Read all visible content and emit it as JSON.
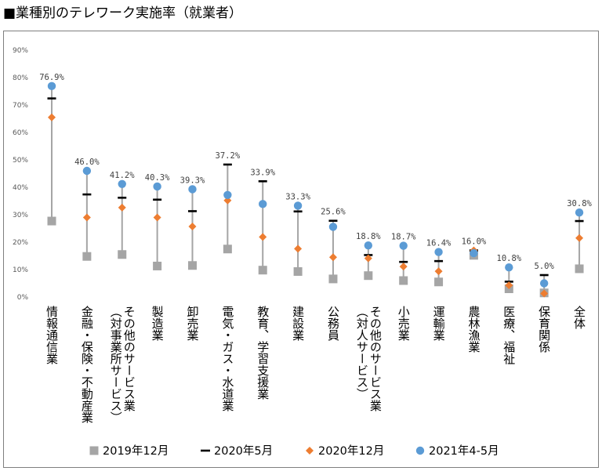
{
  "title": "■業種別のテレワーク実施率（就業者）",
  "chart_data": {
    "type": "scatter",
    "title": "業種別のテレワーク実施率（就業者）",
    "ylim": [
      0,
      90
    ],
    "y_ticks": [
      "0%",
      "10%",
      "20%",
      "30%",
      "40%",
      "50%",
      "60%",
      "70%",
      "80%",
      "90%"
    ],
    "grid": false,
    "legend_position": "bottom",
    "categories": [
      [
        "情報通信業"
      ],
      [
        "金融・保険・不動産業"
      ],
      [
        "その他のサービス業",
        "（対事業所サービス）"
      ],
      [
        "製造業"
      ],
      [
        "卸売業"
      ],
      [
        "電気・ガス・水道業"
      ],
      [
        "教育、学習支援業"
      ],
      [
        "建設業"
      ],
      [
        "公務員"
      ],
      [
        "その他のサービス業",
        "（対人サービス）"
      ],
      [
        "小売業"
      ],
      [
        "運輸業"
      ],
      [
        "農林漁業"
      ],
      [
        "医療、福祉"
      ],
      [
        "保育関係"
      ],
      [
        "全体"
      ]
    ],
    "series": [
      {
        "name": "2019年12月",
        "marker": "square",
        "color": "#a5a5a5",
        "values": [
          27.7,
          14.8,
          15.5,
          11.3,
          11.5,
          17.5,
          9.8,
          9.3,
          6.6,
          7.8,
          6.0,
          5.5,
          15.2,
          3.0,
          1.5,
          10.3
        ]
      },
      {
        "name": "2020年5月",
        "marker": "dash",
        "color": "#000000",
        "values": [
          72.4,
          37.4,
          36.2,
          35.5,
          31.3,
          48.3,
          42.2,
          31.2,
          27.8,
          15.3,
          12.8,
          13.1,
          17.0,
          5.6,
          8.0,
          27.7
        ]
      },
      {
        "name": "2020年12月",
        "marker": "diamond",
        "color": "#ed7d31",
        "values": [
          65.5,
          29.0,
          32.6,
          29.0,
          25.7,
          35.2,
          21.9,
          17.6,
          14.5,
          14.1,
          11.1,
          9.4,
          17.0,
          4.3,
          1.3,
          21.5
        ]
      },
      {
        "name": "2021年4-5月",
        "marker": "circle",
        "color": "#5b9bd5",
        "values": [
          76.9,
          46.0,
          41.2,
          40.3,
          39.3,
          37.2,
          33.9,
          33.3,
          25.6,
          18.8,
          18.7,
          16.4,
          16.0,
          10.8,
          5.0,
          30.8
        ]
      }
    ],
    "data_labels": [
      "76.9%",
      "46.0%",
      "41.2%",
      "40.3%",
      "39.3%",
      "37.2%",
      "33.9%",
      "33.3%",
      "25.6%",
      "18.8%",
      "18.7%",
      "16.4%",
      "16.0%",
      "10.8%",
      "5.0%",
      "30.8%"
    ],
    "range_line_color": "#a5a5a5"
  }
}
